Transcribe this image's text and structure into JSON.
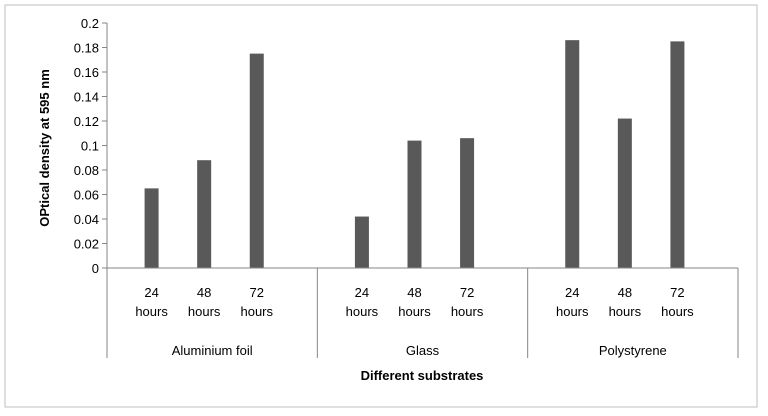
{
  "chart_data": {
    "type": "bar",
    "xlabel": "Different substrates",
    "ylabel": "OPtical density at 595 nm",
    "ylim": [
      0,
      0.2
    ],
    "yticks": [
      "0",
      "0.02",
      "0.04",
      "0.06",
      "0.08",
      "0.1",
      "0.12",
      "0.14",
      "0.16",
      "0.18",
      "0.2"
    ],
    "grid": false,
    "legend": "none",
    "bar_color": "#595959",
    "groups": [
      {
        "name": "Aluminium foil",
        "categories": [
          [
            "24",
            "hours"
          ],
          [
            "48",
            "hours"
          ],
          [
            "72",
            "hours"
          ]
        ],
        "values": [
          0.065,
          0.088,
          0.175
        ]
      },
      {
        "name": "Glass",
        "categories": [
          [
            "24",
            "hours"
          ],
          [
            "48",
            "hours"
          ],
          [
            "72",
            "hours"
          ]
        ],
        "values": [
          0.042,
          0.104,
          0.106
        ]
      },
      {
        "name": "Polystyrene",
        "categories": [
          [
            "24",
            "hours"
          ],
          [
            "48",
            "hours"
          ],
          [
            "72",
            "hours"
          ]
        ],
        "values": [
          0.186,
          0.122,
          0.185
        ]
      }
    ]
  }
}
